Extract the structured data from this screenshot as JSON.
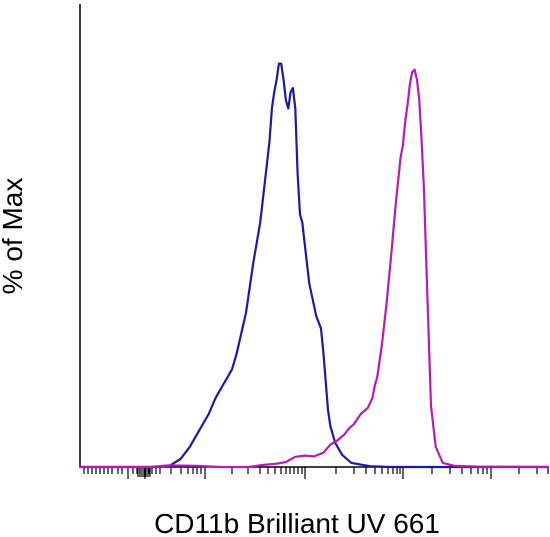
{
  "chart_data": {
    "type": "line",
    "xlabel": "CD11b Brilliant UV 661",
    "ylabel": "% of Max",
    "xscale": "biexponential (tick marks only, no tick labels)",
    "ylim": [
      0,
      100
    ],
    "grid": false,
    "legend": "none",
    "series": [
      {
        "color": "#1a1aa6",
        "points": [
          [
            0.0,
            0
          ],
          [
            0.08,
            0
          ],
          [
            0.15,
            0
          ],
          [
            0.19,
            0.2
          ],
          [
            0.215,
            2
          ],
          [
            0.235,
            5
          ],
          [
            0.255,
            9
          ],
          [
            0.275,
            13
          ],
          [
            0.29,
            17
          ],
          [
            0.305,
            20
          ],
          [
            0.315,
            22
          ],
          [
            0.325,
            24
          ],
          [
            0.335,
            28
          ],
          [
            0.345,
            33
          ],
          [
            0.355,
            38
          ],
          [
            0.37,
            50
          ],
          [
            0.385,
            60
          ],
          [
            0.395,
            70
          ],
          [
            0.405,
            80
          ],
          [
            0.41,
            88
          ],
          [
            0.415,
            92
          ],
          [
            0.42,
            95
          ],
          [
            0.425,
            99
          ],
          [
            0.43,
            99
          ],
          [
            0.435,
            95
          ],
          [
            0.44,
            90
          ],
          [
            0.445,
            88
          ],
          [
            0.45,
            92
          ],
          [
            0.455,
            93
          ],
          [
            0.46,
            88
          ],
          [
            0.465,
            72
          ],
          [
            0.47,
            62
          ],
          [
            0.475,
            60
          ],
          [
            0.48,
            55
          ],
          [
            0.49,
            45
          ],
          [
            0.505,
            37
          ],
          [
            0.515,
            34
          ],
          [
            0.52,
            28
          ],
          [
            0.525,
            21
          ],
          [
            0.53,
            14
          ],
          [
            0.535,
            10
          ],
          [
            0.545,
            6
          ],
          [
            0.56,
            3
          ],
          [
            0.58,
            1
          ],
          [
            0.62,
            0.2
          ],
          [
            0.66,
            0
          ],
          [
            1.0,
            0
          ]
        ]
      },
      {
        "color": "#b61bb6",
        "points": [
          [
            0.0,
            0
          ],
          [
            0.11,
            0
          ],
          [
            0.15,
            0
          ],
          [
            0.19,
            0.4
          ],
          [
            0.25,
            0.3
          ],
          [
            0.3,
            0
          ],
          [
            0.36,
            0
          ],
          [
            0.39,
            0.5
          ],
          [
            0.42,
            0.8
          ],
          [
            0.44,
            1.2
          ],
          [
            0.46,
            2.5
          ],
          [
            0.48,
            2.8
          ],
          [
            0.5,
            2.6
          ],
          [
            0.52,
            3.5
          ],
          [
            0.535,
            5.5
          ],
          [
            0.55,
            6.5
          ],
          [
            0.565,
            8
          ],
          [
            0.575,
            9.5
          ],
          [
            0.585,
            10.5
          ],
          [
            0.6,
            13
          ],
          [
            0.615,
            14.5
          ],
          [
            0.625,
            17
          ],
          [
            0.63,
            20
          ],
          [
            0.635,
            22
          ],
          [
            0.645,
            30
          ],
          [
            0.655,
            40
          ],
          [
            0.665,
            52
          ],
          [
            0.675,
            65
          ],
          [
            0.685,
            76
          ],
          [
            0.69,
            79
          ],
          [
            0.695,
            85
          ],
          [
            0.7,
            89
          ],
          [
            0.705,
            94
          ],
          [
            0.71,
            97
          ],
          [
            0.715,
            97.5
          ],
          [
            0.72,
            95
          ],
          [
            0.725,
            90
          ],
          [
            0.73,
            80
          ],
          [
            0.735,
            68
          ],
          [
            0.74,
            50
          ],
          [
            0.745,
            32
          ],
          [
            0.75,
            15
          ],
          [
            0.76,
            5
          ],
          [
            0.775,
            1
          ],
          [
            0.8,
            0.3
          ],
          [
            0.85,
            0.1
          ],
          [
            1.0,
            0
          ]
        ]
      }
    ]
  }
}
